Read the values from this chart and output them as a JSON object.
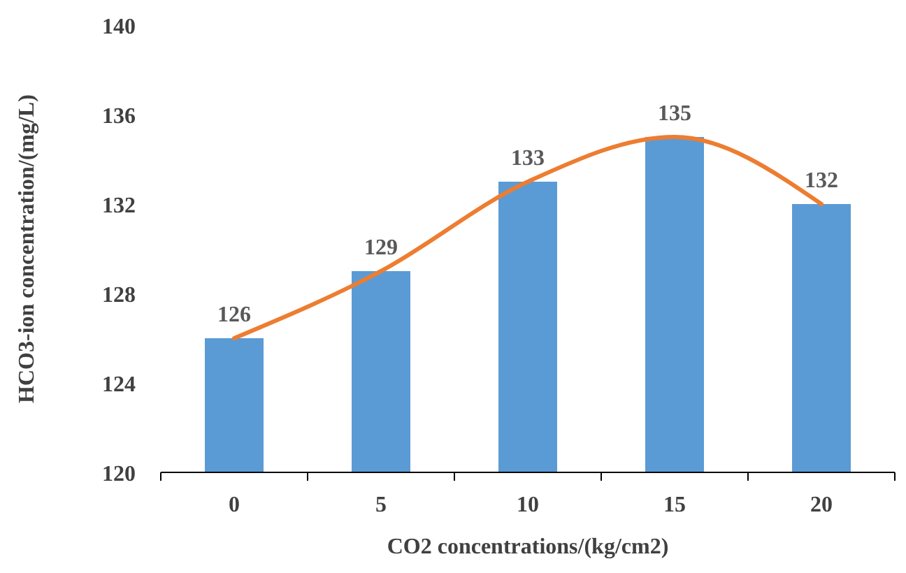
{
  "chart_data": {
    "type": "bar",
    "categories": [
      "0",
      "5",
      "10",
      "15",
      "20"
    ],
    "xlabel": "CO2 concentrations/(kg/cm2)",
    "ylabel": "HCO3-ion concentration/(mg/L)",
    "ylim": [
      120,
      140
    ],
    "yticks": [
      120,
      124,
      128,
      132,
      136,
      140
    ],
    "grid": false,
    "series": [
      {
        "color": "#5b9bd5",
        "values": [
          126,
          129,
          133,
          135,
          132
        ],
        "value_labels": [
          "126",
          "129",
          "133",
          "135",
          "132"
        ]
      },
      {
        "type": "line",
        "color": "#ed7d31",
        "values": [
          126,
          129,
          133,
          135,
          132
        ]
      }
    ]
  }
}
